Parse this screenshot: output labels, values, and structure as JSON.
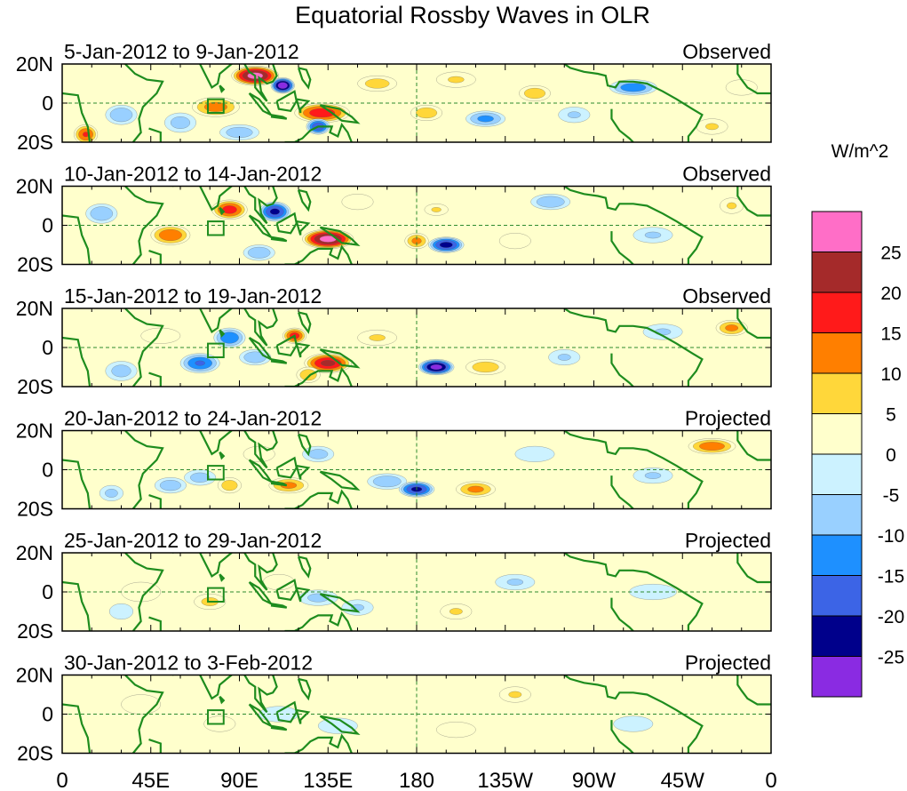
{
  "chart_data": {
    "type": "heatmap",
    "title": "Equatorial Rossby Waves in OLR",
    "units_label": "W/m^2",
    "x_ticks": [
      "0",
      "45E",
      "90E",
      "135E",
      "180",
      "135W",
      "90W",
      "45W",
      "0"
    ],
    "y_ticks": [
      "20N",
      "0",
      "20S"
    ],
    "lon_range": [
      0,
      360
    ],
    "lat_range": [
      -20,
      20
    ],
    "colorbar": {
      "labels": [
        "25",
        "20",
        "15",
        "10",
        "5",
        "0",
        "-5",
        "-10",
        "-15",
        "-20",
        "-25"
      ],
      "colors": [
        "#ff6ec7",
        "#a52a2a",
        "#ff1a1a",
        "#ff7f00",
        "#ffd73a",
        "#ffffcc",
        "#ccf2ff",
        "#99d0ff",
        "#1e90ff",
        "#3c64e6",
        "#00008b",
        "#8a2be2"
      ]
    },
    "panels": [
      {
        "period": "5-Jan-2012 to 9-Jan-2012",
        "status": "Observed",
        "blobs": [
          [
            98,
            14,
            12,
            5,
            28
          ],
          [
            112,
            9,
            6,
            4,
            -30
          ],
          [
            132,
            -5,
            14,
            5,
            19
          ],
          [
            78,
            -2,
            12,
            5,
            13
          ],
          [
            12,
            -16,
            6,
            5,
            16
          ],
          [
            130,
            -12,
            6,
            4,
            -20
          ],
          [
            185,
            -5,
            8,
            4,
            9
          ],
          [
            215,
            -8,
            10,
            4,
            -12
          ],
          [
            240,
            5,
            8,
            4,
            9
          ],
          [
            290,
            8,
            12,
            4,
            -14
          ],
          [
            330,
            -12,
            8,
            4,
            6
          ],
          [
            345,
            8,
            8,
            4,
            4
          ],
          [
            30,
            -6,
            8,
            5,
            -10
          ],
          [
            60,
            -10,
            8,
            5,
            -8
          ],
          [
            160,
            10,
            10,
            4,
            8
          ],
          [
            260,
            -6,
            8,
            4,
            -6
          ],
          [
            90,
            -15,
            10,
            4,
            -9
          ],
          [
            200,
            12,
            10,
            4,
            6
          ]
        ]
      },
      {
        "period": "10-Jan-2012 to 14-Jan-2012",
        "status": "Observed",
        "blobs": [
          [
            85,
            8,
            9,
            5,
            18
          ],
          [
            108,
            7,
            8,
            5,
            -22
          ],
          [
            135,
            -7,
            13,
            5,
            28
          ],
          [
            55,
            -5,
            10,
            5,
            15
          ],
          [
            20,
            6,
            8,
            5,
            -10
          ],
          [
            195,
            -10,
            9,
            4,
            -23
          ],
          [
            180,
            -8,
            6,
            4,
            12
          ],
          [
            248,
            12,
            10,
            4,
            -10
          ],
          [
            190,
            8,
            6,
            3,
            6
          ],
          [
            300,
            -5,
            10,
            4,
            -6
          ],
          [
            340,
            10,
            6,
            4,
            6
          ],
          [
            100,
            -14,
            8,
            4,
            -10
          ],
          [
            150,
            12,
            8,
            4,
            5
          ],
          [
            230,
            -8,
            8,
            4,
            5
          ]
        ]
      },
      {
        "period": "15-Jan-2012 to 19-Jan-2012",
        "status": "Observed",
        "blobs": [
          [
            85,
            5,
            8,
            5,
            -15
          ],
          [
            118,
            6,
            6,
            4,
            18
          ],
          [
            135,
            -8,
            12,
            5,
            22
          ],
          [
            70,
            -8,
            10,
            5,
            -16
          ],
          [
            98,
            -5,
            8,
            4,
            -10
          ],
          [
            190,
            -10,
            9,
            4,
            -28
          ],
          [
            215,
            -10,
            10,
            4,
            9
          ],
          [
            340,
            10,
            8,
            4,
            12
          ],
          [
            305,
            8,
            10,
            4,
            -6
          ],
          [
            30,
            -12,
            8,
            5,
            -8
          ],
          [
            160,
            5,
            10,
            4,
            6
          ],
          [
            50,
            6,
            10,
            4,
            5
          ],
          [
            255,
            -5,
            8,
            4,
            -6
          ],
          [
            125,
            -14,
            6,
            4,
            10
          ]
        ]
      },
      {
        "period": "20-Jan-2012 to 24-Jan-2012",
        "status": "Projected",
        "blobs": [
          [
            165,
            -6,
            10,
            4,
            -10
          ],
          [
            180,
            -10,
            9,
            4,
            -22
          ],
          [
            210,
            -10,
            10,
            4,
            12
          ],
          [
            115,
            -8,
            10,
            4,
            12
          ],
          [
            85,
            -8,
            6,
            4,
            9
          ],
          [
            55,
            -8,
            8,
            4,
            -9
          ],
          [
            70,
            -4,
            8,
            4,
            -8
          ],
          [
            130,
            8,
            8,
            4,
            -8
          ],
          [
            330,
            12,
            12,
            4,
            14
          ],
          [
            300,
            -3,
            10,
            4,
            -6
          ],
          [
            25,
            -12,
            6,
            4,
            -7
          ],
          [
            240,
            8,
            10,
            4,
            -5
          ],
          [
            100,
            8,
            8,
            4,
            5
          ]
        ]
      },
      {
        "period": "25-Jan-2012 to 29-Jan-2012",
        "status": "Projected",
        "blobs": [
          [
            75,
            -5,
            8,
            4,
            7
          ],
          [
            130,
            -3,
            10,
            4,
            -7
          ],
          [
            150,
            -8,
            8,
            4,
            -6
          ],
          [
            200,
            -10,
            8,
            4,
            6
          ],
          [
            230,
            5,
            10,
            4,
            -6
          ],
          [
            110,
            5,
            8,
            4,
            5
          ],
          [
            40,
            0,
            10,
            5,
            4
          ],
          [
            300,
            0,
            12,
            4,
            -4
          ],
          [
            30,
            -10,
            6,
            4,
            -4
          ]
        ]
      },
      {
        "period": "30-Jan-2012 to 3-Feb-2012",
        "status": "Projected",
        "blobs": [
          [
            80,
            -5,
            8,
            4,
            5
          ],
          [
            140,
            -6,
            10,
            4,
            -5
          ],
          [
            200,
            -8,
            10,
            4,
            4
          ],
          [
            230,
            10,
            8,
            4,
            6
          ],
          [
            110,
            0,
            10,
            4,
            -4
          ],
          [
            40,
            5,
            10,
            5,
            4
          ],
          [
            290,
            -5,
            10,
            4,
            -4
          ]
        ]
      }
    ]
  }
}
